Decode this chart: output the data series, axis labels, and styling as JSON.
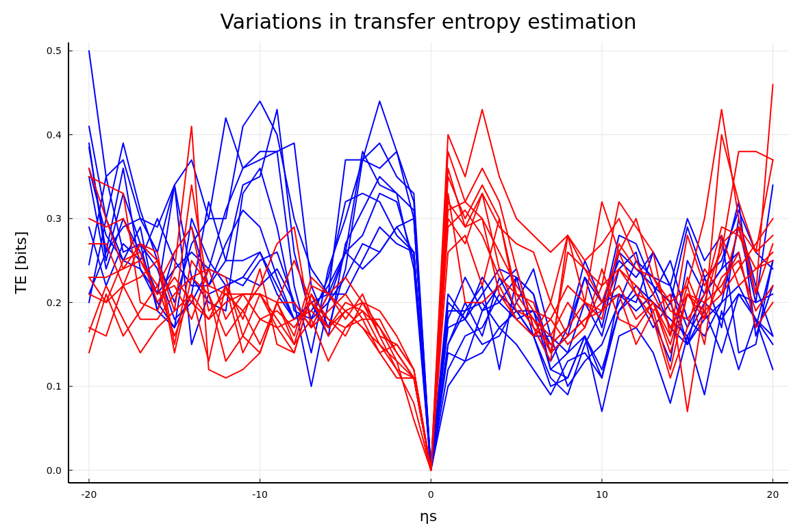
{
  "chart_data": {
    "type": "line",
    "title": "Variations in transfer entropy estimation",
    "xlabel": "ηs",
    "ylabel": "TE [bits]",
    "x": [
      -20,
      -19,
      -18,
      -17,
      -16,
      -15,
      -14,
      -13,
      -12,
      -11,
      -10,
      -9,
      -8,
      -7,
      -6,
      -5,
      -4,
      -3,
      -2,
      -1,
      0,
      1,
      2,
      3,
      4,
      5,
      6,
      7,
      8,
      9,
      10,
      11,
      12,
      13,
      14,
      15,
      16,
      17,
      18,
      19,
      20
    ],
    "xlim": [
      -21.2,
      20.9
    ],
    "xticks": [
      -20,
      -10,
      0,
      10,
      20
    ],
    "ylim": [
      -0.015,
      0.51
    ],
    "yticks": [
      {
        "value": 0,
        "label": "0.0"
      },
      0.1,
      0.2,
      0.3,
      0.4,
      0.5
    ],
    "grid": true,
    "marker": "none",
    "line_style": "solid",
    "series": [
      {
        "color": "#0000ff",
        "values": [
          0.5,
          0.35,
          0.37,
          0.3,
          0.26,
          0.34,
          0.37,
          0.3,
          0.3,
          0.41,
          0.44,
          0.4,
          0.3,
          0.24,
          0.21,
          0.37,
          0.37,
          0.39,
          0.35,
          0.33,
          0,
          0.2,
          0.18,
          0.15,
          0.16,
          0.2,
          0.24,
          0.16,
          0.14,
          0.16,
          0.11,
          0.19,
          0.22,
          0.2,
          0.18,
          0.16,
          0.2,
          0.18,
          0.21,
          0.18,
          0.16
        ]
      },
      {
        "color": "#0000ff",
        "values": [
          0.41,
          0.3,
          0.39,
          0.31,
          0.25,
          0.2,
          0.27,
          0.3,
          0.42,
          0.36,
          0.37,
          0.38,
          0.22,
          0.14,
          0.24,
          0.3,
          0.37,
          0.44,
          0.38,
          0.32,
          0,
          0.12,
          0.16,
          0.17,
          0.21,
          0.19,
          0.16,
          0.11,
          0.09,
          0.15,
          0.19,
          0.28,
          0.27,
          0.22,
          0.17,
          0.15,
          0.23,
          0.17,
          0.3,
          0.22,
          0.16
        ]
      },
      {
        "color": "#0000ff",
        "values": [
          0.39,
          0.25,
          0.33,
          0.27,
          0.24,
          0.18,
          0.2,
          0.24,
          0.31,
          0.36,
          0.38,
          0.38,
          0.39,
          0.22,
          0.17,
          0.24,
          0.37,
          0.36,
          0.38,
          0.3,
          0,
          0.15,
          0.19,
          0.22,
          0.12,
          0.23,
          0.21,
          0.12,
          0.14,
          0.2,
          0.16,
          0.24,
          0.26,
          0.18,
          0.13,
          0.25,
          0.21,
          0.24,
          0.26,
          0.17,
          0.25
        ]
      },
      {
        "color": "#0000ff",
        "values": [
          0.385,
          0.26,
          0.36,
          0.24,
          0.2,
          0.17,
          0.21,
          0.32,
          0.25,
          0.34,
          0.35,
          0.43,
          0.26,
          0.18,
          0.2,
          0.26,
          0.38,
          0.34,
          0.33,
          0.31,
          0,
          0.21,
          0.18,
          0.23,
          0.2,
          0.18,
          0.19,
          0.15,
          0.17,
          0.23,
          0.2,
          0.21,
          0.19,
          0.21,
          0.25,
          0.18,
          0.16,
          0.2,
          0.29,
          0.2,
          0.34
        ]
      },
      {
        "color": "#0000ff",
        "values": [
          0.35,
          0.24,
          0.3,
          0.26,
          0.21,
          0.34,
          0.23,
          0.2,
          0.19,
          0.33,
          0.36,
          0.29,
          0.19,
          0.18,
          0.23,
          0.32,
          0.33,
          0.32,
          0.28,
          0.26,
          0,
          0.18,
          0.23,
          0.19,
          0.22,
          0.24,
          0.17,
          0.13,
          0.17,
          0.25,
          0.2,
          0.25,
          0.23,
          0.26,
          0.22,
          0.17,
          0.21,
          0.24,
          0.32,
          0.16,
          0.22
        ]
      },
      {
        "color": "#0000ff",
        "values": [
          0.29,
          0.22,
          0.27,
          0.25,
          0.3,
          0.25,
          0.22,
          0.22,
          0.25,
          0.25,
          0.26,
          0.22,
          0.18,
          0.19,
          0.22,
          0.26,
          0.28,
          0.33,
          0.32,
          0.25,
          0,
          0.14,
          0.13,
          0.19,
          0.2,
          0.23,
          0.16,
          0.1,
          0.11,
          0.16,
          0.12,
          0.19,
          0.21,
          0.17,
          0.2,
          0.15,
          0.18,
          0.2,
          0.22,
          0.18,
          0.15
        ]
      },
      {
        "color": "#0000ff",
        "values": [
          0.245,
          0.35,
          0.26,
          0.27,
          0.19,
          0.17,
          0.3,
          0.25,
          0.22,
          0.23,
          0.26,
          0.21,
          0.18,
          0.2,
          0.21,
          0.26,
          0.24,
          0.26,
          0.29,
          0.26,
          0,
          0.15,
          0.2,
          0.16,
          0.23,
          0.19,
          0.19,
          0.12,
          0.11,
          0.16,
          0.07,
          0.16,
          0.17,
          0.14,
          0.08,
          0.16,
          0.09,
          0.19,
          0.12,
          0.18,
          0.12
        ]
      },
      {
        "color": "#0000ff",
        "values": [
          0.21,
          0.26,
          0.29,
          0.3,
          0.29,
          0.34,
          0.15,
          0.21,
          0.22,
          0.23,
          0.22,
          0.24,
          0.2,
          0.1,
          0.2,
          0.23,
          0.27,
          0.26,
          0.29,
          0.3,
          0,
          0.19,
          0.19,
          0.2,
          0.17,
          0.19,
          0.16,
          0.16,
          0.1,
          0.13,
          0.15,
          0.2,
          0.25,
          0.23,
          0.22,
          0.15,
          0.19,
          0.14,
          0.21,
          0.2,
          0.21
        ]
      },
      {
        "color": "#0000ff",
        "values": [
          0.2,
          0.3,
          0.25,
          0.24,
          0.21,
          0.24,
          0.26,
          0.24,
          0.23,
          0.22,
          0.25,
          0.26,
          0.2,
          0.17,
          0.21,
          0.21,
          0.25,
          0.29,
          0.27,
          0.26,
          0,
          0.1,
          0.13,
          0.14,
          0.17,
          0.15,
          0.12,
          0.09,
          0.13,
          0.14,
          0.11,
          0.21,
          0.2,
          0.26,
          0.22,
          0.3,
          0.25,
          0.28,
          0.14,
          0.15,
          0.25
        ]
      },
      {
        "color": "#0000ff",
        "values": [
          0.36,
          0.28,
          0.25,
          0.29,
          0.19,
          0.26,
          0.29,
          0.22,
          0.27,
          0.31,
          0.29,
          0.23,
          0.18,
          0.2,
          0.16,
          0.27,
          0.31,
          0.35,
          0.33,
          0.24,
          0,
          0.17,
          0.18,
          0.21,
          0.24,
          0.23,
          0.21,
          0.14,
          0.16,
          0.23,
          0.17,
          0.26,
          0.24,
          0.22,
          0.2,
          0.29,
          0.23,
          0.25,
          0.31,
          0.26,
          0.24
        ]
      },
      {
        "color": "#ff0000",
        "values": [
          0.36,
          0.3,
          0.24,
          0.27,
          0.26,
          0.15,
          0.25,
          0.22,
          0.21,
          0.19,
          0.15,
          0.2,
          0.25,
          0.2,
          0.17,
          0.19,
          0.17,
          0.15,
          0.13,
          0.11,
          0,
          0.4,
          0.35,
          0.43,
          0.35,
          0.3,
          0.28,
          0.26,
          0.28,
          0.2,
          0.32,
          0.26,
          0.3,
          0.23,
          0.2,
          0.22,
          0.3,
          0.43,
          0.3,
          0.21,
          0.46
        ]
      },
      {
        "color": "#ff0000",
        "values": [
          0.35,
          0.34,
          0.33,
          0.2,
          0.19,
          0.24,
          0.41,
          0.12,
          0.11,
          0.12,
          0.14,
          0.2,
          0.15,
          0.22,
          0.21,
          0.19,
          0.2,
          0.16,
          0.12,
          0.08,
          0,
          0.38,
          0.32,
          0.36,
          0.32,
          0.24,
          0.17,
          0.13,
          0.28,
          0.24,
          0.22,
          0.32,
          0.29,
          0.26,
          0.16,
          0.28,
          0.22,
          0.26,
          0.38,
          0.38,
          0.37
        ]
      },
      {
        "color": "#ff0000",
        "values": [
          0.3,
          0.29,
          0.3,
          0.25,
          0.22,
          0.26,
          0.29,
          0.19,
          0.21,
          0.21,
          0.21,
          0.2,
          0.16,
          0.23,
          0.21,
          0.18,
          0.21,
          0.16,
          0.15,
          0.12,
          0,
          0.35,
          0.3,
          0.34,
          0.3,
          0.21,
          0.18,
          0.14,
          0.26,
          0.24,
          0.2,
          0.26,
          0.21,
          0.2,
          0.16,
          0.23,
          0.18,
          0.4,
          0.32,
          0.26,
          0.37
        ]
      },
      {
        "color": "#ff0000",
        "values": [
          0.27,
          0.27,
          0.22,
          0.23,
          0.25,
          0.14,
          0.23,
          0.24,
          0.23,
          0.16,
          0.14,
          0.2,
          0.2,
          0.17,
          0.19,
          0.21,
          0.18,
          0.18,
          0.14,
          0.11,
          0,
          0.3,
          0.27,
          0.33,
          0.29,
          0.27,
          0.26,
          0.2,
          0.28,
          0.25,
          0.27,
          0.3,
          0.25,
          0.21,
          0.17,
          0.21,
          0.19,
          0.21,
          0.24,
          0.27,
          0.3
        ]
      },
      {
        "color": "#ff0000",
        "values": [
          0.23,
          0.23,
          0.24,
          0.25,
          0.21,
          0.22,
          0.18,
          0.24,
          0.18,
          0.21,
          0.21,
          0.17,
          0.18,
          0.19,
          0.17,
          0.2,
          0.19,
          0.17,
          0.13,
          0.06,
          0,
          0.32,
          0.29,
          0.33,
          0.24,
          0.19,
          0.18,
          0.16,
          0.2,
          0.17,
          0.22,
          0.24,
          0.21,
          0.18,
          0.11,
          0.17,
          0.24,
          0.21,
          0.29,
          0.21,
          0.27
        ]
      },
      {
        "color": "#ff0000",
        "values": [
          0.21,
          0.2,
          0.25,
          0.26,
          0.2,
          0.23,
          0.2,
          0.18,
          0.2,
          0.21,
          0.18,
          0.19,
          0.17,
          0.2,
          0.18,
          0.17,
          0.19,
          0.15,
          0.12,
          0.11,
          0,
          0.29,
          0.31,
          0.28,
          0.23,
          0.21,
          0.2,
          0.14,
          0.16,
          0.18,
          0.19,
          0.24,
          0.22,
          0.19,
          0.12,
          0.21,
          0.2,
          0.27,
          0.29,
          0.26,
          0.28
        ]
      },
      {
        "color": "#ff0000",
        "values": [
          0.17,
          0.16,
          0.22,
          0.18,
          0.18,
          0.21,
          0.23,
          0.21,
          0.13,
          0.16,
          0.21,
          0.18,
          0.15,
          0.18,
          0.13,
          0.17,
          0.18,
          0.14,
          0.15,
          0.12,
          0,
          0.26,
          0.28,
          0.22,
          0.3,
          0.2,
          0.17,
          0.15,
          0.17,
          0.2,
          0.19,
          0.21,
          0.15,
          0.19,
          0.21,
          0.07,
          0.2,
          0.22,
          0.26,
          0.17,
          0.2
        ]
      },
      {
        "color": "#ff0000",
        "values": [
          0.165,
          0.22,
          0.18,
          0.14,
          0.17,
          0.19,
          0.21,
          0.18,
          0.22,
          0.14,
          0.18,
          0.17,
          0.14,
          0.21,
          0.16,
          0.19,
          0.17,
          0.14,
          0.11,
          0.11,
          0,
          0.31,
          0.32,
          0.3,
          0.21,
          0.18,
          0.16,
          0.2,
          0.16,
          0.18,
          0.2,
          0.22,
          0.18,
          0.2,
          0.15,
          0.22,
          0.15,
          0.28,
          0.22,
          0.24,
          0.25
        ]
      },
      {
        "color": "#ff0000",
        "values": [
          0.14,
          0.21,
          0.16,
          0.19,
          0.22,
          0.16,
          0.21,
          0.13,
          0.22,
          0.18,
          0.24,
          0.15,
          0.14,
          0.21,
          0.18,
          0.16,
          0.2,
          0.17,
          0.14,
          0.11,
          0,
          0.33,
          0.2,
          0.2,
          0.22,
          0.18,
          0.16,
          0.18,
          0.15,
          0.17,
          0.24,
          0.18,
          0.17,
          0.2,
          0.14,
          0.21,
          0.18,
          0.23,
          0.25,
          0.19,
          0.22
        ]
      },
      {
        "color": "#ff0000",
        "values": [
          0.23,
          0.2,
          0.22,
          0.27,
          0.25,
          0.19,
          0.34,
          0.21,
          0.16,
          0.19,
          0.22,
          0.27,
          0.29,
          0.17,
          0.21,
          0.23,
          0.2,
          0.19,
          0.16,
          0.12,
          0,
          0.36,
          0.29,
          0.3,
          0.26,
          0.22,
          0.19,
          0.18,
          0.22,
          0.2,
          0.18,
          0.27,
          0.24,
          0.23,
          0.19,
          0.18,
          0.21,
          0.29,
          0.28,
          0.24,
          0.26
        ]
      }
    ]
  }
}
